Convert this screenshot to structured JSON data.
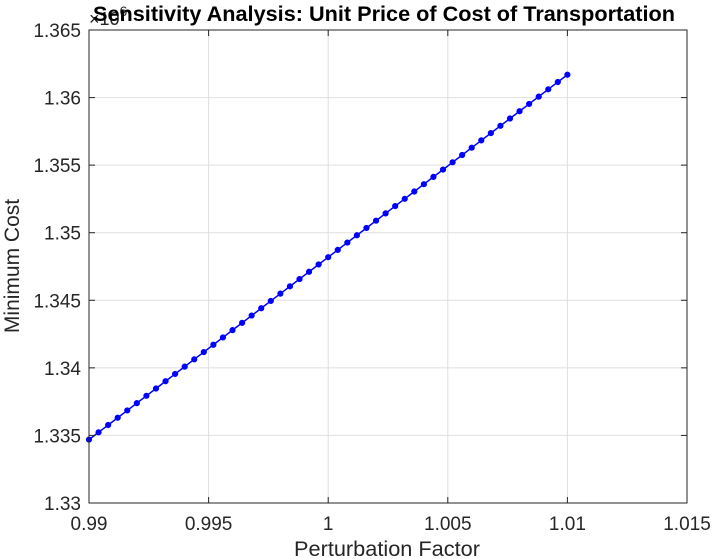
{
  "chart_data": {
    "type": "line",
    "title": "Sensitivity Analysis: Unit Price of Cost of Transportation",
    "xlabel": "Perturbation Factor",
    "ylabel": "Minimum Cost",
    "xlim": [
      0.99,
      1.015
    ],
    "ylim": [
      1.33,
      1.365
    ],
    "y_scale_exponent": "6",
    "y_multiplier_label": "×10",
    "xticks": [
      0.99,
      0.995,
      1,
      1.005,
      1.01,
      1.015
    ],
    "xtick_labels": [
      "0.99",
      "0.995",
      "1",
      "1.005",
      "1.01",
      "1.015"
    ],
    "yticks": [
      1.33,
      1.335,
      1.34,
      1.345,
      1.35,
      1.355,
      1.36,
      1.365
    ],
    "ytick_labels": [
      "1.33",
      "1.335",
      "1.34",
      "1.345",
      "1.35",
      "1.355",
      "1.36",
      "1.365"
    ],
    "grid": true,
    "series": [
      {
        "color": "#0000ff",
        "marker": "circle",
        "x": [
          0.99,
          0.9904,
          0.9908,
          0.9912,
          0.9916,
          0.992,
          0.9924,
          0.9928,
          0.9932,
          0.9936,
          0.994,
          0.9944,
          0.9948,
          0.9952,
          0.9956,
          0.996,
          0.9964,
          0.9968,
          0.9972,
          0.9976,
          0.998,
          0.9984,
          0.9988,
          0.9992,
          0.9996,
          1.0,
          1.0004,
          1.0008,
          1.0012,
          1.0016,
          1.002,
          1.0024,
          1.0028,
          1.0032,
          1.0036,
          1.004,
          1.0044,
          1.0048,
          1.0052,
          1.0056,
          1.006,
          1.0064,
          1.0068,
          1.0072,
          1.0076,
          1.008,
          1.0084,
          1.0088,
          1.0092,
          1.0096,
          1.01
        ],
        "y": [
          1.33469,
          1.33523,
          1.33577,
          1.33631,
          1.33685,
          1.33739,
          1.33793,
          1.33847,
          1.33901,
          1.33955,
          1.34009,
          1.34063,
          1.34117,
          1.34171,
          1.34225,
          1.34279,
          1.34333,
          1.34387,
          1.34441,
          1.34495,
          1.34549,
          1.34603,
          1.34657,
          1.34711,
          1.34765,
          1.34819,
          1.34873,
          1.34927,
          1.34981,
          1.35035,
          1.35089,
          1.35143,
          1.35197,
          1.35251,
          1.35305,
          1.35359,
          1.35413,
          1.35467,
          1.35521,
          1.35575,
          1.35629,
          1.35683,
          1.35737,
          1.35791,
          1.35845,
          1.35899,
          1.35953,
          1.36007,
          1.36061,
          1.36115,
          1.36169
        ]
      }
    ]
  }
}
